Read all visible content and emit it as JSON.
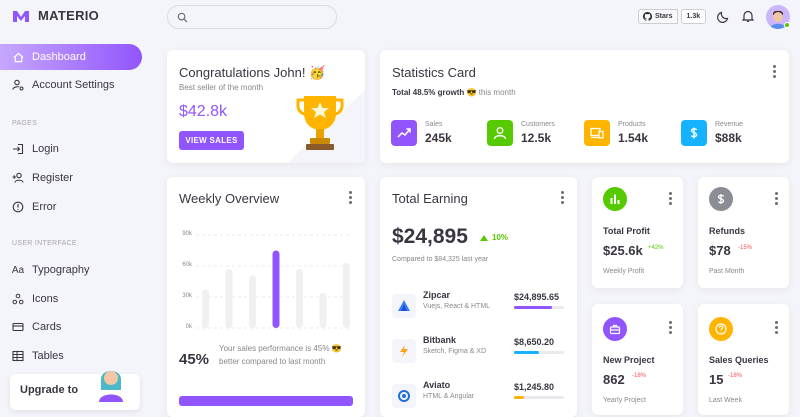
{
  "brand": {
    "name": "MATERIO"
  },
  "topbar": {
    "search_placeholder": "",
    "github_label": "Stars",
    "github_count": "1.3k"
  },
  "sidebar": {
    "items": [
      {
        "label": "Dashboard",
        "icon": "home-icon"
      },
      {
        "label": "Account Settings",
        "icon": "account-cog-icon"
      }
    ],
    "pages_label": "PAGES",
    "pages": [
      {
        "label": "Login",
        "icon": "login-icon"
      },
      {
        "label": "Register",
        "icon": "account-plus-icon"
      },
      {
        "label": "Error",
        "icon": "alert-circle-icon"
      }
    ],
    "ui_label": "USER INTERFACE",
    "ui": [
      {
        "label": "Typography",
        "icon": "typography-icon"
      },
      {
        "label": "Icons",
        "icon": "icons-icon"
      },
      {
        "label": "Cards",
        "icon": "cards-icon"
      },
      {
        "label": "Tables",
        "icon": "table-icon"
      }
    ],
    "upgrade": "Upgrade to"
  },
  "congrats": {
    "title": "Congratulations John! 🥳",
    "subtitle": "Best seller of the month",
    "amount": "$42.8k",
    "button": "VIEW SALES"
  },
  "statistics": {
    "title": "Statistics Card",
    "growth_bold": "Total 48.5% growth",
    "growth_emoji": "😎",
    "growth_rest": "this month",
    "items": [
      {
        "label": "Sales",
        "value": "245k",
        "color": "#9155fd"
      },
      {
        "label": "Customers",
        "value": "12.5k",
        "color": "#56ca00"
      },
      {
        "label": "Products",
        "value": "1.54k",
        "color": "#ffb400"
      },
      {
        "label": "Revenue",
        "value": "$88k",
        "color": "#16b1ff"
      }
    ]
  },
  "weekly": {
    "title": "Weekly Overview",
    "yticks": [
      "90k",
      "60k",
      "30k",
      "0k"
    ],
    "percent": "45%",
    "text": "Your sales performance is 45% 😎 better compared to last month"
  },
  "chart_data": {
    "type": "bar",
    "categories": [
      "",
      "",
      "",
      "",
      "",
      "",
      ""
    ],
    "values": [
      37,
      57,
      51,
      75,
      57,
      34,
      63
    ],
    "ylim": [
      0,
      90
    ],
    "highlight_index": 3
  },
  "earning": {
    "title": "Total Earning",
    "amount": "$24,895",
    "change": "10%",
    "compare": "Compared to $84,325 last year",
    "rows": [
      {
        "name": "Zipcar",
        "sub": "Vuejs, React & HTML",
        "amount": "$24,895.65",
        "progress": 0.75,
        "color": "#9155fd"
      },
      {
        "name": "Bitbank",
        "sub": "Sketch, Figma & XD",
        "amount": "$8,650.20",
        "progress": 0.5,
        "color": "#16b1ff"
      },
      {
        "name": "Aviato",
        "sub": "HTML & Angular",
        "amount": "$1,245.80",
        "progress": 0.2,
        "color": "#ffb400"
      }
    ]
  },
  "mini": [
    {
      "title": "Total Profit",
      "value": "$25.6k",
      "pct": "+42%",
      "pct_color": "#56ca00",
      "sub": "Weekly Profit",
      "icon_color": "#56ca00"
    },
    {
      "title": "Refunds",
      "value": "$78",
      "pct": "-15%",
      "pct_color": "#ff4c51",
      "sub": "Past Month",
      "icon_color": "#8a8d93"
    },
    {
      "title": "New Project",
      "value": "862",
      "pct": "-18%",
      "pct_color": "#ff4c51",
      "sub": "Yearly Project",
      "icon_color": "#9155fd"
    },
    {
      "title": "Sales Queries",
      "value": "15",
      "pct": "-18%",
      "pct_color": "#ff4c51",
      "sub": "Last Week",
      "icon_color": "#ffb400"
    }
  ]
}
